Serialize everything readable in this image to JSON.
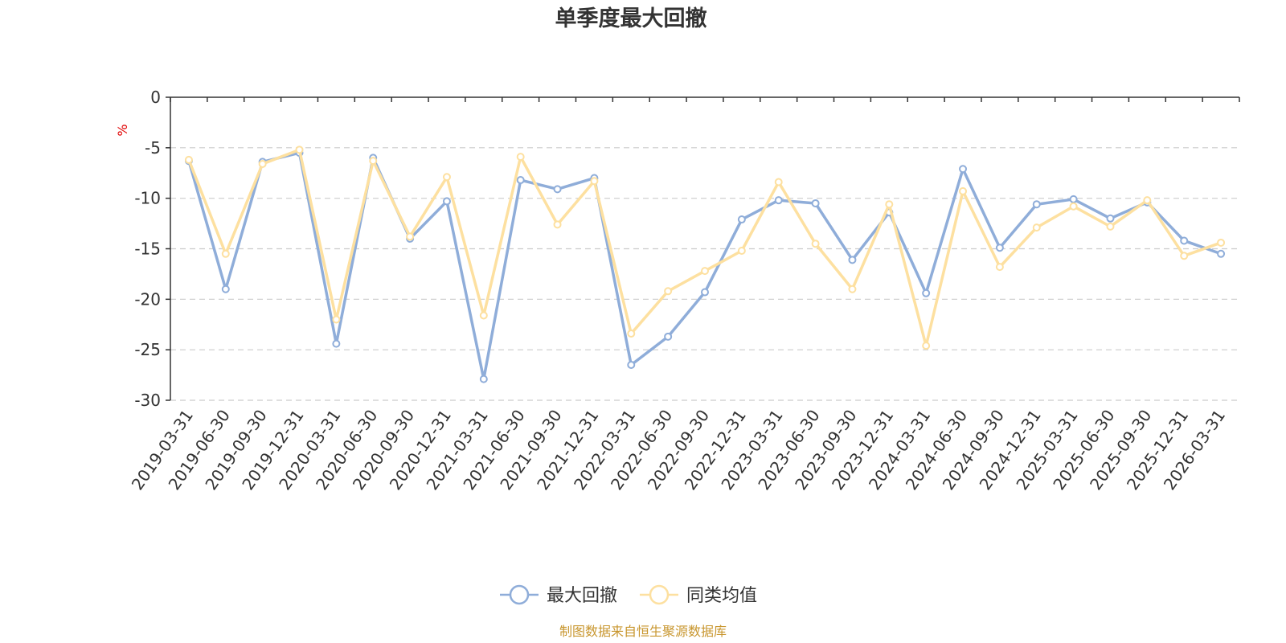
{
  "chart_data": {
    "type": "line",
    "title": "单季度最大回撤",
    "ylabel": "%",
    "ylim": [
      -30,
      0
    ],
    "yticks": [
      0,
      -5,
      -10,
      -15,
      -20,
      -25,
      -30
    ],
    "grid": true,
    "legend_position": "bottom",
    "source": "制图数据来自恒生聚源数据库",
    "categories": [
      "2019-03-31",
      "2019-06-30",
      "2019-09-30",
      "2019-12-31",
      "2020-03-31",
      "2020-06-30",
      "2020-09-30",
      "2020-12-31",
      "2021-03-31",
      "2021-06-30",
      "2021-09-30",
      "2021-12-31",
      "2022-03-31",
      "2022-06-30",
      "2022-09-30",
      "2022-12-31",
      "2023-03-31",
      "2023-06-30",
      "2023-09-30",
      "2023-12-31",
      "2024-03-31",
      "2024-06-30",
      "2024-09-30",
      "2024-12-31",
      "2025-03-31",
      "2025-06-30",
      "2025-09-30",
      "2025-12-31",
      "2026-03-31"
    ],
    "series": [
      {
        "name": "最大回撤",
        "color": "#8fadd9",
        "values": [
          -6.3,
          -19.0,
          -6.4,
          -5.5,
          -24.4,
          -6.0,
          -14.0,
          -10.3,
          -27.9,
          -8.2,
          -9.1,
          -8.0,
          -26.5,
          -23.7,
          -19.3,
          -12.1,
          -10.2,
          -10.5,
          -16.1,
          -11.4,
          -19.4,
          -7.1,
          -14.9,
          -10.6,
          -10.1,
          -12.0,
          -10.4,
          -14.2,
          -15.5
        ]
      },
      {
        "name": "同类均值",
        "color": "#fde0a0",
        "values": [
          -6.2,
          -15.5,
          -6.6,
          -5.2,
          -22.0,
          -6.3,
          -13.8,
          -7.9,
          -21.6,
          -5.9,
          -12.6,
          -8.3,
          -23.4,
          -19.2,
          -17.2,
          -15.2,
          -8.4,
          -14.5,
          -19.0,
          -10.6,
          -24.6,
          -9.3,
          -16.8,
          -12.9,
          -10.8,
          -12.8,
          -10.2,
          -15.7,
          -14.4
        ]
      }
    ]
  }
}
